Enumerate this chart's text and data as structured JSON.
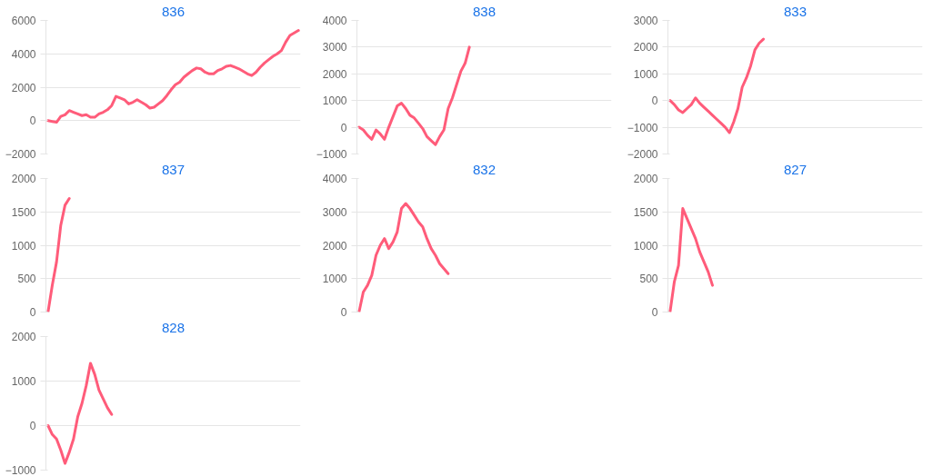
{
  "chart_data": [
    {
      "type": "line",
      "title": "836",
      "color": "#ff5c7a",
      "ylim": [
        -2000,
        6000
      ],
      "yticks": [
        -2000,
        0,
        2000,
        4000,
        6000
      ],
      "grid": "y",
      "tick_labels": "y",
      "categories": [
        null,
        null,
        null,
        null,
        null,
        null,
        null,
        null,
        null,
        null,
        null,
        null,
        null,
        null,
        null,
        null,
        null,
        null,
        null,
        null,
        null,
        null,
        null,
        null,
        null,
        null,
        null,
        null,
        null,
        null,
        null,
        null,
        null,
        null,
        null,
        null,
        null,
        null,
        null,
        null,
        null,
        null,
        null,
        null,
        null,
        null,
        null,
        null,
        null,
        null,
        null,
        null,
        null,
        null,
        null,
        null,
        null,
        null,
        null,
        null
      ],
      "values": [
        0,
        -50,
        -100,
        250,
        350,
        600,
        500,
        400,
        300,
        350,
        200,
        200,
        400,
        500,
        650,
        900,
        1450,
        1350,
        1250,
        1000,
        1100,
        1250,
        1100,
        950,
        750,
        800,
        1000,
        1200,
        1500,
        1850,
        2150,
        2300,
        2600,
        2800,
        3000,
        3150,
        3100,
        2900,
        2800,
        2800,
        3000,
        3100,
        3250,
        3300,
        3200,
        3100,
        2950,
        2800,
        2700,
        2900,
        3200,
        3450,
        3650,
        3850,
        4000,
        4200,
        4700,
        5100,
        5250,
        5400
      ]
    },
    {
      "type": "line",
      "title": "838",
      "color": "#ff5c7a",
      "ylim": [
        -1000,
        4000
      ],
      "yticks": [
        -1000,
        0,
        1000,
        2000,
        3000,
        4000
      ],
      "grid": "y",
      "tick_labels": "y",
      "categories": [
        null,
        null,
        null,
        null,
        null,
        null,
        null,
        null,
        null,
        null,
        null,
        null,
        null,
        null,
        null,
        null,
        null,
        null,
        null,
        null,
        null,
        null,
        null,
        null,
        null,
        null,
        null,
        null,
        null,
        null,
        null,
        null,
        null,
        null,
        null,
        null,
        null,
        null,
        null,
        null,
        null,
        null,
        null,
        null,
        null,
        null,
        null,
        null,
        null,
        null,
        null,
        null,
        null,
        null,
        null,
        null,
        null,
        null,
        null,
        null
      ],
      "values": [
        0,
        -100,
        -300,
        -450,
        -100,
        -250,
        -450,
        0,
        400,
        800,
        900,
        700,
        450,
        350,
        150,
        -50,
        -350,
        -500,
        -650,
        -350,
        -100,
        700,
        1100,
        1600,
        2100,
        2400,
        3000,
        null,
        null,
        null,
        null,
        null,
        null,
        null,
        null,
        null,
        null,
        null,
        null,
        null,
        null,
        null,
        null,
        null,
        null,
        null,
        null,
        null,
        null,
        null,
        null,
        null,
        null,
        null,
        null,
        null,
        null,
        null,
        null,
        null
      ]
    },
    {
      "type": "line",
      "title": "833",
      "color": "#ff5c7a",
      "ylim": [
        -2000,
        3000
      ],
      "yticks": [
        -2000,
        -1000,
        0,
        1000,
        2000,
        3000
      ],
      "grid": "y",
      "tick_labels": "y",
      "categories": [
        null,
        null,
        null,
        null,
        null,
        null,
        null,
        null,
        null,
        null,
        null,
        null,
        null,
        null,
        null,
        null,
        null,
        null,
        null,
        null,
        null,
        null,
        null,
        null,
        null,
        null,
        null,
        null,
        null,
        null,
        null,
        null,
        null,
        null,
        null,
        null,
        null,
        null,
        null,
        null,
        null,
        null,
        null,
        null,
        null,
        null,
        null,
        null,
        null,
        null,
        null,
        null,
        null,
        null,
        null,
        null,
        null,
        null,
        null,
        null
      ],
      "values": [
        0,
        -150,
        -350,
        -450,
        -300,
        -150,
        100,
        -100,
        -250,
        -400,
        -550,
        -700,
        -850,
        -1000,
        -1200,
        -800,
        -300,
        500,
        850,
        1300,
        1900,
        2150,
        2300,
        null,
        null,
        null,
        null,
        null,
        null,
        null,
        null,
        null,
        null,
        null,
        null,
        null,
        null,
        null,
        null,
        null,
        null,
        null,
        null,
        null,
        null,
        null,
        null,
        null,
        null,
        null,
        null,
        null,
        null,
        null,
        null,
        null,
        null,
        null,
        null,
        null
      ]
    },
    {
      "type": "line",
      "title": "837",
      "color": "#ff5c7a",
      "ylim": [
        0,
        2000
      ],
      "yticks": [
        0,
        500,
        1000,
        1500,
        2000
      ],
      "grid": "y",
      "tick_labels": "y",
      "categories": [
        null,
        null,
        null,
        null,
        null,
        null,
        null,
        null,
        null,
        null,
        null,
        null,
        null,
        null,
        null,
        null,
        null,
        null,
        null,
        null,
        null,
        null,
        null,
        null,
        null,
        null,
        null,
        null,
        null,
        null,
        null,
        null,
        null,
        null,
        null,
        null,
        null,
        null,
        null,
        null,
        null,
        null,
        null,
        null,
        null,
        null,
        null,
        null,
        null,
        null,
        null,
        null,
        null,
        null,
        null,
        null,
        null,
        null,
        null,
        null
      ],
      "values": [
        0,
        400,
        750,
        1300,
        1600,
        1700,
        null,
        null,
        null,
        null,
        null,
        null,
        null,
        null,
        null,
        null,
        null,
        null,
        null,
        null,
        null,
        null,
        null,
        null,
        null,
        null,
        null,
        null,
        null,
        null,
        null,
        null,
        null,
        null,
        null,
        null,
        null,
        null,
        null,
        null,
        null,
        null,
        null,
        null,
        null,
        null,
        null,
        null,
        null,
        null,
        null,
        null,
        null,
        null,
        null,
        null,
        null,
        null,
        null,
        null
      ]
    },
    {
      "type": "line",
      "title": "832",
      "color": "#ff5c7a",
      "ylim": [
        0,
        4000
      ],
      "yticks": [
        0,
        1000,
        2000,
        3000,
        4000
      ],
      "grid": "y",
      "tick_labels": "y",
      "categories": [
        null,
        null,
        null,
        null,
        null,
        null,
        null,
        null,
        null,
        null,
        null,
        null,
        null,
        null,
        null,
        null,
        null,
        null,
        null,
        null,
        null,
        null,
        null,
        null,
        null,
        null,
        null,
        null,
        null,
        null,
        null,
        null,
        null,
        null,
        null,
        null,
        null,
        null,
        null,
        null,
        null,
        null,
        null,
        null,
        null,
        null,
        null,
        null,
        null,
        null,
        null,
        null,
        null,
        null,
        null,
        null,
        null,
        null,
        null,
        null
      ],
      "values": [
        0,
        600,
        800,
        1100,
        1700,
        2000,
        2200,
        1900,
        2100,
        2400,
        3100,
        3250,
        3100,
        2900,
        2700,
        2550,
        2200,
        1900,
        1700,
        1450,
        1300,
        1150,
        null,
        null,
        null,
        null,
        null,
        null,
        null,
        null,
        null,
        null,
        null,
        null,
        null,
        null,
        null,
        null,
        null,
        null,
        null,
        null,
        null,
        null,
        null,
        null,
        null,
        null,
        null,
        null,
        null,
        null,
        null,
        null,
        null,
        null,
        null,
        null,
        null,
        null
      ]
    },
    {
      "type": "line",
      "title": "827",
      "color": "#ff5c7a",
      "ylim": [
        0,
        2000
      ],
      "yticks": [
        0,
        500,
        1000,
        1500,
        2000
      ],
      "grid": "y",
      "tick_labels": "y",
      "categories": [
        null,
        null,
        null,
        null,
        null,
        null,
        null,
        null,
        null,
        null,
        null,
        null,
        null,
        null,
        null,
        null,
        null,
        null,
        null,
        null,
        null,
        null,
        null,
        null,
        null,
        null,
        null,
        null,
        null,
        null,
        null,
        null,
        null,
        null,
        null,
        null,
        null,
        null,
        null,
        null,
        null,
        null,
        null,
        null,
        null,
        null,
        null,
        null,
        null,
        null,
        null,
        null,
        null,
        null,
        null,
        null,
        null,
        null,
        null,
        null
      ],
      "values": [
        0,
        450,
        700,
        1550,
        1400,
        1250,
        1100,
        900,
        750,
        600,
        400,
        null,
        null,
        null,
        null,
        null,
        null,
        null,
        null,
        null,
        null,
        null,
        null,
        null,
        null,
        null,
        null,
        null,
        null,
        null,
        null,
        null,
        null,
        null,
        null,
        null,
        null,
        null,
        null,
        null,
        null,
        null,
        null,
        null,
        null,
        null,
        null,
        null,
        null,
        null,
        null,
        null,
        null,
        null,
        null,
        null,
        null,
        null,
        null,
        null
      ]
    },
    {
      "type": "line",
      "title": "828",
      "color": "#ff5c7a",
      "ylim": [
        -1000,
        2000
      ],
      "yticks": [
        -1000,
        0,
        1000,
        2000
      ],
      "grid": "y",
      "tick_labels": "y",
      "categories": [
        null,
        null,
        null,
        null,
        null,
        null,
        null,
        null,
        null,
        null,
        null,
        null,
        null,
        null,
        null,
        null,
        null,
        null,
        null,
        null,
        null,
        null,
        null,
        null,
        null,
        null,
        null,
        null,
        null,
        null,
        null,
        null,
        null,
        null,
        null,
        null,
        null,
        null,
        null,
        null,
        null,
        null,
        null,
        null,
        null,
        null,
        null,
        null,
        null,
        null,
        null,
        null,
        null,
        null,
        null,
        null,
        null,
        null,
        null,
        null
      ],
      "values": [
        0,
        -200,
        -300,
        -550,
        -850,
        -600,
        -300,
        200,
        500,
        900,
        1400,
        1150,
        800,
        600,
        400,
        250,
        null,
        null,
        null,
        null,
        null,
        null,
        null,
        null,
        null,
        null,
        null,
        null,
        null,
        null,
        null,
        null,
        null,
        null,
        null,
        null,
        null,
        null,
        null,
        null,
        null,
        null,
        null,
        null,
        null,
        null,
        null,
        null,
        null,
        null,
        null,
        null,
        null,
        null,
        null,
        null,
        null,
        null,
        null,
        null
      ]
    }
  ]
}
